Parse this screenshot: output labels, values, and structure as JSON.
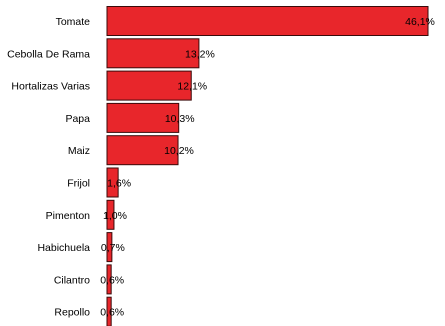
{
  "chart_data": {
    "type": "bar",
    "orientation": "horizontal",
    "categories": [
      "Tomate",
      "Cebolla De Rama",
      "Hortalizas Varias",
      "Papa",
      "Maiz",
      "Frijol",
      "Pimenton",
      "Habichuela",
      "Cilantro",
      "Repollo"
    ],
    "values": [
      46.1,
      13.2,
      12.1,
      10.3,
      10.2,
      1.6,
      1.0,
      0.7,
      0.6,
      0.6
    ],
    "value_labels": [
      "46,1%",
      "13,2%",
      "12,1%",
      "10,3%",
      "10,2%",
      "1,6%",
      "1,0%",
      "0,7%",
      "0,6%",
      "0,6%"
    ],
    "title": "",
    "xlabel": "",
    "ylabel": "",
    "xlim": [
      0,
      46.1
    ],
    "grid": false,
    "legend": "none",
    "bar_color": "#e8262b",
    "bar_edge_color": "#3a0a0a"
  }
}
